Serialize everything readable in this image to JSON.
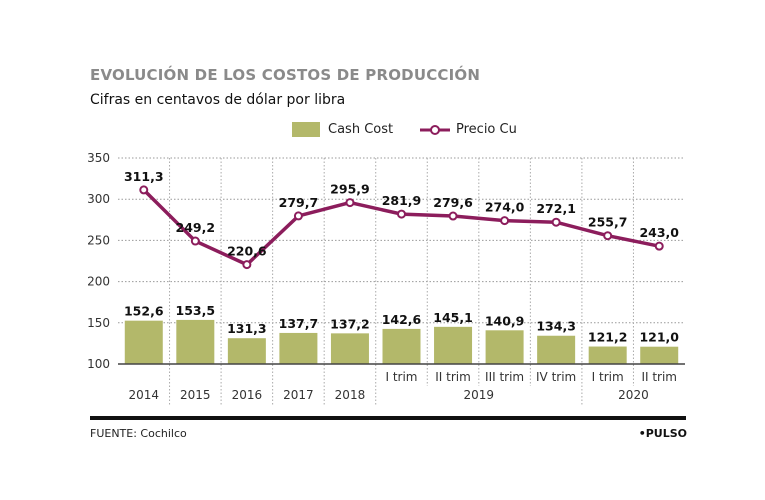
{
  "chart_data": {
    "type": "bar+line",
    "title": "EVOLUCIÓN DE LOS COSTOS DE PRODUCCIÓN",
    "subtitle": "Cifras en centavos de dólar por libra",
    "categories": [
      "2014",
      "2015",
      "2016",
      "2017",
      "2018",
      "I trim",
      "II trim",
      "III trim",
      "IV trim",
      "I trim",
      "II trim"
    ],
    "category_groups": [
      {
        "label": "2019",
        "start": 5,
        "end": 8
      },
      {
        "label": "2020",
        "start": 9,
        "end": 10
      }
    ],
    "series": [
      {
        "name": "Cash Cost",
        "type": "bar",
        "color": "#b3b86a",
        "values": [
          152.6,
          153.5,
          131.3,
          137.7,
          137.2,
          142.6,
          145.1,
          140.9,
          134.3,
          121.2,
          121.0
        ],
        "labels": [
          "152,6",
          "153,5",
          "131,3",
          "137,7",
          "137,2",
          "142,6",
          "145,1",
          "140,9",
          "134,3",
          "121,2",
          "121,0"
        ]
      },
      {
        "name": "Precio Cu",
        "type": "line",
        "color": "#8c1d5c",
        "values": [
          311.3,
          249.2,
          220.6,
          279.7,
          295.9,
          281.9,
          279.6,
          274.0,
          272.1,
          255.7,
          243.0
        ],
        "labels": [
          "311,3",
          "249,2",
          "220,6",
          "279,7",
          "295,9",
          "281,9",
          "279,6",
          "274,0",
          "272,1",
          "255,7",
          "243,0"
        ]
      }
    ],
    "ylim": [
      100,
      350
    ],
    "yticks": [
      "100",
      "150",
      "200",
      "250",
      "300",
      "350"
    ],
    "grid": true,
    "legend": "top-right"
  },
  "footer": {
    "source": "FUENTE: Cochilco",
    "brand": "•PULSO"
  }
}
